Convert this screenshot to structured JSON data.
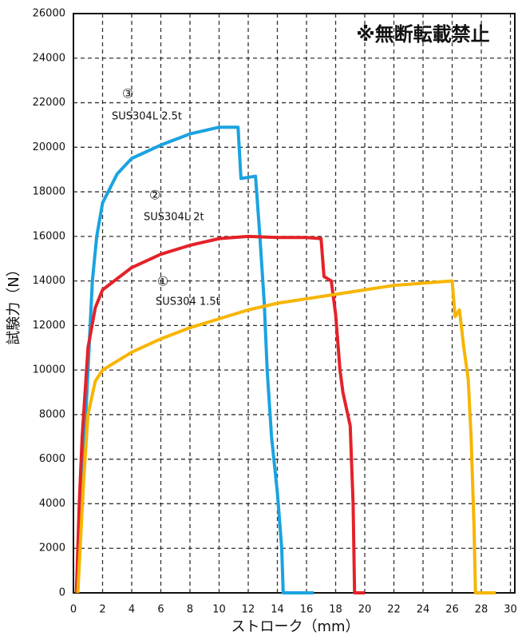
{
  "chart_data": {
    "type": "line",
    "x_label": "ストローク（mm）",
    "y_label": "試験力（N）",
    "watermark": "※無断転載禁止",
    "annotations": [
      "③",
      "②",
      "①"
    ],
    "xlim": [
      0,
      30.3
    ],
    "ylim": [
      0,
      26000
    ],
    "xticks": [
      0,
      2,
      4,
      6,
      8,
      10,
      12,
      14,
      16,
      18,
      20,
      22,
      24,
      26,
      28,
      30
    ],
    "yticks": [
      0,
      2000,
      4000,
      6000,
      8000,
      10000,
      12000,
      14000,
      16000,
      18000,
      20000,
      22000,
      24000,
      26000
    ],
    "grid": true,
    "series": [
      {
        "name": "SUS304L 2.5t",
        "color": "#1aa3e0",
        "x": [
          0.3,
          0.5,
          0.7,
          1,
          1.3,
          1.6,
          2,
          3,
          4,
          6,
          8,
          10,
          11.3,
          11.5,
          12.5,
          12.8,
          13.1,
          13.3,
          13.6,
          14,
          14.3,
          14.4,
          16.5
        ],
        "values": [
          0,
          3000,
          6000,
          10000,
          14000,
          16000,
          17500,
          18800,
          19500,
          20100,
          20600,
          20900,
          20900,
          18600,
          18700,
          16000,
          13000,
          10000,
          7000,
          4500,
          2000,
          0,
          0
        ]
      },
      {
        "name": "SUS304L 2t",
        "color": "#e42229",
        "x": [
          0.2,
          0.4,
          0.6,
          1,
          1.5,
          2,
          4,
          6,
          8,
          10,
          12,
          14,
          16,
          17,
          17.2,
          17.7,
          18,
          18.3,
          18.5,
          19,
          19.2,
          19.3,
          20
        ],
        "values": [
          0,
          4000,
          7000,
          11000,
          12800,
          13600,
          14600,
          15200,
          15600,
          15900,
          16000,
          15950,
          15950,
          15900,
          14200,
          14000,
          12500,
          10000,
          9000,
          7500,
          4000,
          0,
          0
        ]
      },
      {
        "name": "SUS304 1.5t",
        "color": "#f7b500",
        "x": [
          0.3,
          0.7,
          1,
          1.5,
          2,
          4,
          6,
          8,
          10,
          12,
          14,
          16,
          18,
          20,
          22,
          24,
          26,
          26.2,
          26.5,
          26.8,
          27.1,
          27.3,
          27.5,
          27.6,
          29
        ],
        "values": [
          0,
          5000,
          8000,
          9500,
          10000,
          10800,
          11400,
          11900,
          12300,
          12700,
          13000,
          13200,
          13400,
          13600,
          13800,
          13900,
          14000,
          12400,
          12700,
          11000,
          9600,
          7000,
          3000,
          0,
          0
        ]
      }
    ]
  }
}
